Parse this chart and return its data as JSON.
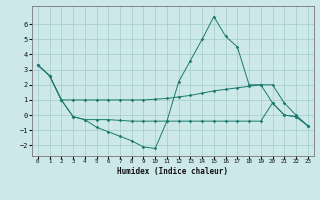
{
  "xlabel": "Humidex (Indice chaleur)",
  "background_color": "#cde8e8",
  "grid_color": "#aacece",
  "line_color": "#1a7a6e",
  "xlim": [
    -0.5,
    23.5
  ],
  "ylim": [
    -2.7,
    7.2
  ],
  "xticks": [
    0,
    1,
    2,
    3,
    4,
    5,
    6,
    7,
    8,
    9,
    10,
    11,
    12,
    13,
    14,
    15,
    16,
    17,
    18,
    19,
    20,
    21,
    22,
    23
  ],
  "yticks": [
    -2,
    -1,
    0,
    1,
    2,
    3,
    4,
    5,
    6
  ],
  "series1_x": [
    0,
    1,
    2,
    3,
    4,
    5,
    6,
    7,
    8,
    9,
    10,
    11,
    12,
    13,
    14,
    15,
    16,
    17,
    18,
    19,
    20,
    21,
    22,
    23
  ],
  "series1_y": [
    3.3,
    2.6,
    1.0,
    -0.1,
    -0.3,
    -0.8,
    -1.1,
    -1.4,
    -1.7,
    -2.1,
    -2.2,
    -0.4,
    2.2,
    3.6,
    5.0,
    6.5,
    5.2,
    4.5,
    2.0,
    2.0,
    0.8,
    0.0,
    -0.1,
    -0.7
  ],
  "series2_x": [
    0,
    1,
    2,
    3,
    4,
    5,
    6,
    7,
    8,
    9,
    10,
    11,
    12,
    13,
    14,
    15,
    16,
    17,
    18,
    19,
    20,
    21,
    22,
    23
  ],
  "series2_y": [
    3.3,
    2.6,
    1.0,
    1.0,
    1.0,
    1.0,
    1.0,
    1.0,
    1.0,
    1.0,
    1.05,
    1.1,
    1.2,
    1.3,
    1.45,
    1.6,
    1.7,
    1.8,
    1.9,
    2.0,
    2.0,
    0.8,
    0.0,
    -0.7
  ],
  "series3_x": [
    0,
    1,
    2,
    3,
    4,
    5,
    6,
    7,
    8,
    9,
    10,
    11,
    12,
    13,
    14,
    15,
    16,
    17,
    18,
    19,
    20,
    21,
    22,
    23
  ],
  "series3_y": [
    3.3,
    2.6,
    1.0,
    -0.1,
    -0.3,
    -0.3,
    -0.3,
    -0.35,
    -0.4,
    -0.4,
    -0.4,
    -0.4,
    -0.4,
    -0.4,
    -0.4,
    -0.4,
    -0.4,
    -0.4,
    -0.4,
    -0.4,
    0.8,
    0.0,
    -0.1,
    -0.7
  ]
}
